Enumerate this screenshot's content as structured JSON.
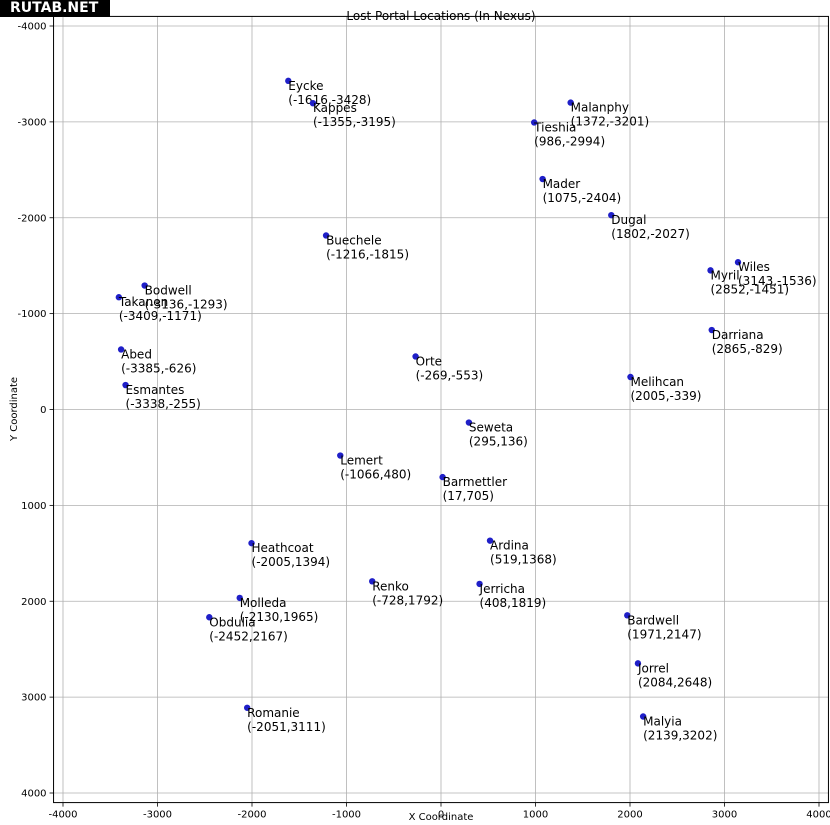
{
  "watermark": "RUTAB.NET",
  "chart_data": {
    "type": "scatter",
    "title": "Lost Portal Locations (In Nexus)",
    "xlabel": "X Coordinate",
    "ylabel": "Y Coordinate",
    "xlim": [
      -4000,
      4000
    ],
    "ylim": [
      4000,
      -4000
    ],
    "y_inverted": true,
    "xticks": [
      -4000,
      -3000,
      -2000,
      -1000,
      0,
      1000,
      2000,
      3000,
      4000
    ],
    "yticks": [
      -4000,
      -3000,
      -2000,
      -1000,
      0,
      1000,
      2000,
      3000,
      4000
    ],
    "grid": true,
    "marker_color": "#1f1fc8",
    "points": [
      {
        "name": "Eycke",
        "coords": "(-1616,-3428)",
        "x": -1616,
        "y": -3428
      },
      {
        "name": "Kappes",
        "coords": "(-1355,-3195)",
        "x": -1355,
        "y": -3195
      },
      {
        "name": "Malanphy",
        "coords": "(1372,-3201)",
        "x": 1372,
        "y": -3201
      },
      {
        "name": "Tieshia",
        "coords": "(986,-2994)",
        "x": 986,
        "y": -2994
      },
      {
        "name": "Mader",
        "coords": "(1075,-2404)",
        "x": 1075,
        "y": -2404
      },
      {
        "name": "Dugal",
        "coords": "(1802,-2027)",
        "x": 1802,
        "y": -2027
      },
      {
        "name": "Buechele",
        "coords": "(-1216,-1815)",
        "x": -1216,
        "y": -1815
      },
      {
        "name": "Wiles",
        "coords": "(3143,-1536)",
        "x": 3143,
        "y": -1536
      },
      {
        "name": "Myril",
        "coords": "(2852,-1451)",
        "x": 2852,
        "y": -1451
      },
      {
        "name": "Bodwell",
        "coords": "(-3136,-1293)",
        "x": -3136,
        "y": -1293
      },
      {
        "name": "Takanen",
        "coords": "(-3409,-1171)",
        "x": -3409,
        "y": -1171
      },
      {
        "name": "Darriana",
        "coords": "(2865,-829)",
        "x": 2865,
        "y": -829
      },
      {
        "name": "Abed",
        "coords": "(-3385,-626)",
        "x": -3385,
        "y": -626
      },
      {
        "name": "Orte",
        "coords": "(-269,-553)",
        "x": -269,
        "y": -553
      },
      {
        "name": "Melihcan",
        "coords": "(2005,-339)",
        "x": 2005,
        "y": -339
      },
      {
        "name": "Esmantes",
        "coords": "(-3338,-255)",
        "x": -3338,
        "y": -255
      },
      {
        "name": "Seweta",
        "coords": "(295,136)",
        "x": 295,
        "y": 136
      },
      {
        "name": "Lemert",
        "coords": "(-1066,480)",
        "x": -1066,
        "y": 480
      },
      {
        "name": "Barmettler",
        "coords": "(17,705)",
        "x": 17,
        "y": 705
      },
      {
        "name": "Ardina",
        "coords": "(519,1368)",
        "x": 519,
        "y": 1368
      },
      {
        "name": "Heathcoat",
        "coords": "(-2005,1394)",
        "x": -2005,
        "y": 1394
      },
      {
        "name": "Renko",
        "coords": "(-728,1792)",
        "x": -728,
        "y": 1792
      },
      {
        "name": "Jerricha",
        "coords": "(408,1819)",
        "x": 408,
        "y": 1819
      },
      {
        "name": "Molleda",
        "coords": "(-2130,1965)",
        "x": -2130,
        "y": 1965
      },
      {
        "name": "Obdulia",
        "coords": "(-2452,2167)",
        "x": -2452,
        "y": 2167
      },
      {
        "name": "Bardwell",
        "coords": "(1971,2147)",
        "x": 1971,
        "y": 2147
      },
      {
        "name": "Jorrel",
        "coords": "(2084,2648)",
        "x": 2084,
        "y": 2648
      },
      {
        "name": "Romanie",
        "coords": "(-2051,3111)",
        "x": -2051,
        "y": 3111
      },
      {
        "name": "Malyia",
        "coords": "(2139,3202)",
        "x": 2139,
        "y": 3202
      }
    ]
  }
}
